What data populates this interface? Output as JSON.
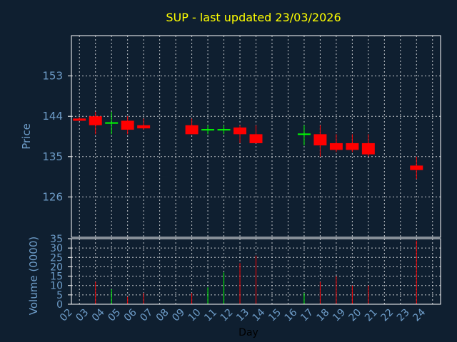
{
  "chart_data": [
    {
      "type": "candlestick",
      "title": "SUP - last updated 23/03/2026",
      "ylabel": "Price",
      "ylim": [
        117,
        162
      ],
      "yticks": [
        126,
        135,
        144,
        153
      ],
      "grid": true,
      "colors": {
        "down": "#ff0000",
        "up": "#00ff00"
      },
      "candles": [
        {
          "day": "02",
          "open": 143.5,
          "high": 143.8,
          "low": 143.0,
          "close": 143.0
        },
        {
          "day": "03",
          "open": 144.0,
          "high": 145.0,
          "low": 140.0,
          "close": 142.0
        },
        {
          "day": "04",
          "open": 142.5,
          "high": 145.0,
          "low": 140.0,
          "close": 142.5
        },
        {
          "day": "05",
          "open": 143.0,
          "high": 144.0,
          "low": 140.0,
          "close": 141.0
        },
        {
          "day": "06",
          "open": 142.0,
          "high": 143.5,
          "low": 141.0,
          "close": 141.3
        },
        {
          "day": "09",
          "open": 142.0,
          "high": 143.5,
          "low": 140.0,
          "close": 140.0
        },
        {
          "day": "10",
          "open": 141.0,
          "high": 142.0,
          "low": 140.0,
          "close": 141.0
        },
        {
          "day": "11",
          "open": 141.0,
          "high": 142.0,
          "low": 140.0,
          "close": 141.0
        },
        {
          "day": "12",
          "open": 141.5,
          "high": 142.0,
          "low": 138.0,
          "close": 140.0
        },
        {
          "day": "13",
          "open": 140.0,
          "high": 142.0,
          "low": 138.0,
          "close": 138.0
        },
        {
          "day": "16",
          "open": 140.0,
          "high": 142.0,
          "low": 137.5,
          "close": 140.0
        },
        {
          "day": "17",
          "open": 140.0,
          "high": 142.0,
          "low": 135.0,
          "close": 137.5
        },
        {
          "day": "18",
          "open": 138.0,
          "high": 140.0,
          "low": 136.0,
          "close": 136.5
        },
        {
          "day": "19",
          "open": 138.0,
          "high": 140.0,
          "low": 136.0,
          "close": 136.5
        },
        {
          "day": "20",
          "open": 138.0,
          "high": 140.0,
          "low": 135.0,
          "close": 135.5
        },
        {
          "day": "23",
          "open": 133.0,
          "high": 135.0,
          "low": 130.0,
          "close": 132.0
        }
      ]
    },
    {
      "type": "bar",
      "ylabel": "Volume (0000)",
      "ylim": [
        0,
        35
      ],
      "yticks": [
        0,
        5,
        10,
        15,
        20,
        25,
        30,
        35
      ],
      "xlabel": "Day",
      "categories": [
        "02",
        "03",
        "04",
        "05",
        "06",
        "07",
        "08",
        "09",
        "10",
        "11",
        "12",
        "13",
        "14",
        "15",
        "16",
        "17",
        "18",
        "19",
        "20",
        "21",
        "22",
        "23",
        "24"
      ],
      "bars": [
        {
          "day": "03",
          "value": 12,
          "color": "#ff0000"
        },
        {
          "day": "04",
          "value": 8,
          "color": "#00ff00"
        },
        {
          "day": "05",
          "value": 4,
          "color": "#ff0000"
        },
        {
          "day": "06",
          "value": 6,
          "color": "#ff0000"
        },
        {
          "day": "09",
          "value": 6,
          "color": "#ff0000"
        },
        {
          "day": "10",
          "value": 9,
          "color": "#00ff00"
        },
        {
          "day": "11",
          "value": 17,
          "color": "#00ff00"
        },
        {
          "day": "12",
          "value": 22,
          "color": "#ff0000"
        },
        {
          "day": "13",
          "value": 26,
          "color": "#ff0000"
        },
        {
          "day": "16",
          "value": 6,
          "color": "#00ff00"
        },
        {
          "day": "17",
          "value": 12,
          "color": "#ff0000"
        },
        {
          "day": "18",
          "value": 15,
          "color": "#ff0000"
        },
        {
          "day": "19",
          "value": 10,
          "color": "#ff0000"
        },
        {
          "day": "20",
          "value": 10,
          "color": "#ff0000"
        },
        {
          "day": "23",
          "value": 34,
          "color": "#ff0000"
        }
      ]
    }
  ]
}
